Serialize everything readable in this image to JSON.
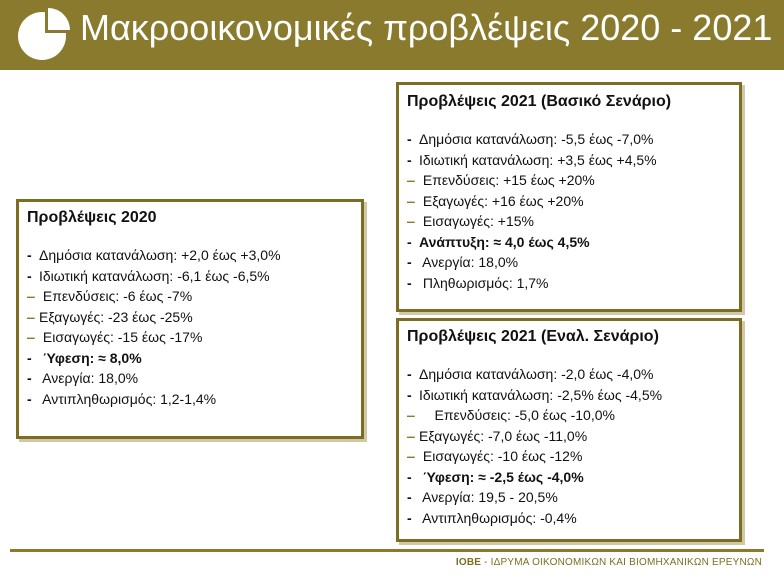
{
  "header": {
    "title": "Μακροοικονομικές προβλέψεις 2020 - 2021",
    "background": "#8a7a2e"
  },
  "box2020": {
    "title": "Προβλέψεις  2020",
    "items": [
      {
        "dash": "black",
        "text": "Δημόσια κατανάλωση: +2,0 έως +3,0%",
        "bold": false
      },
      {
        "dash": "black",
        "text": "Ιδιωτική κατανάλωση: -6,1 έως -6,5%",
        "bold": false
      },
      {
        "dash": "gold",
        "text": " Επενδύσεις: -6 έως -7%",
        "bold": false
      },
      {
        "dash": "gold",
        "text": "Εξαγωγές: -23 έως -25%",
        "bold": false
      },
      {
        "dash": "gold",
        "text": " Εισαγωγές: -15 έως -17%",
        "bold": false
      },
      {
        "dash": "black",
        "text": " Ύφεση: ≈ 8,0%",
        "bold": true
      },
      {
        "dash": "black",
        "text": " Ανεργία: 18,0%",
        "bold": false
      },
      {
        "dash": "black",
        "text": " Αντιπληθωρισμός: 1,2-1,4%",
        "bold": false
      }
    ]
  },
  "box2021base": {
    "title": "Προβλέψεις 2021 (Βασικό Σενάριο)",
    "items": [
      {
        "dash": "black",
        "text": "Δημόσια κατανάλωση: -5,5 έως -7,0%",
        "bold": false
      },
      {
        "dash": "black",
        "text": "Ιδιωτική κατανάλωση: +3,5 έως +4,5%",
        "bold": false
      },
      {
        "dash": "gold",
        "text": " Επενδύσεις: +15 έως +20%",
        "bold": false
      },
      {
        "dash": "gold",
        "text": " Εξαγωγές: +16 έως +20%",
        "bold": false
      },
      {
        "dash": "gold",
        "text": " Εισαγωγές: +15%",
        "bold": false
      },
      {
        "dash": "black",
        "text": "Ανάπτυξη: ≈ 4,0 έως 4,5%",
        "bold": true
      },
      {
        "dash": "black",
        "text": " Ανεργία: 18,0%",
        "bold": false
      },
      {
        "dash": "black",
        "text": " Πληθωρισμός: 1,7%",
        "bold": false
      }
    ]
  },
  "box2021alt": {
    "title": "Προβλέψεις 2021 (Εναλ. Σενάριο)",
    "items": [
      {
        "dash": "black",
        "text": "Δημόσια κατανάλωση: -2,0 έως -4,0%",
        "bold": false
      },
      {
        "dash": "black",
        "text": "Ιδιωτική κατανάλωση: -2,5% έως -4,5%",
        "bold": false
      },
      {
        "dash": "gold",
        "text": "    Επενδύσεις: -5,0 έως -10,0%",
        "bold": false
      },
      {
        "dash": "gold",
        "text": "Εξαγωγές: -7,0 έως -11,0%",
        "bold": false
      },
      {
        "dash": "gold",
        "text": " Εισαγωγές: -10 έως -12%",
        "bold": false
      },
      {
        "dash": "black",
        "text": " Ύφεση: ≈ -2,5 έως -4,0%",
        "bold": true
      },
      {
        "dash": "black",
        "text": " Ανεργία: 19,5 - 20,5%",
        "bold": false
      },
      {
        "dash": "black",
        "text": " Αντιπληθωρισμός: -0,4%",
        "bold": false
      }
    ]
  },
  "footer": {
    "org_abbr": "ΙΟΒΕ",
    "org_name": " - ΙΔΡΥΜΑ ΟΙΚΟΝΟΜΙΚΩΝ ΚΑΙ ΒΙΟΜΗΧΑΝΙΚΩΝ ΕΡΕΥΝΩΝ"
  }
}
